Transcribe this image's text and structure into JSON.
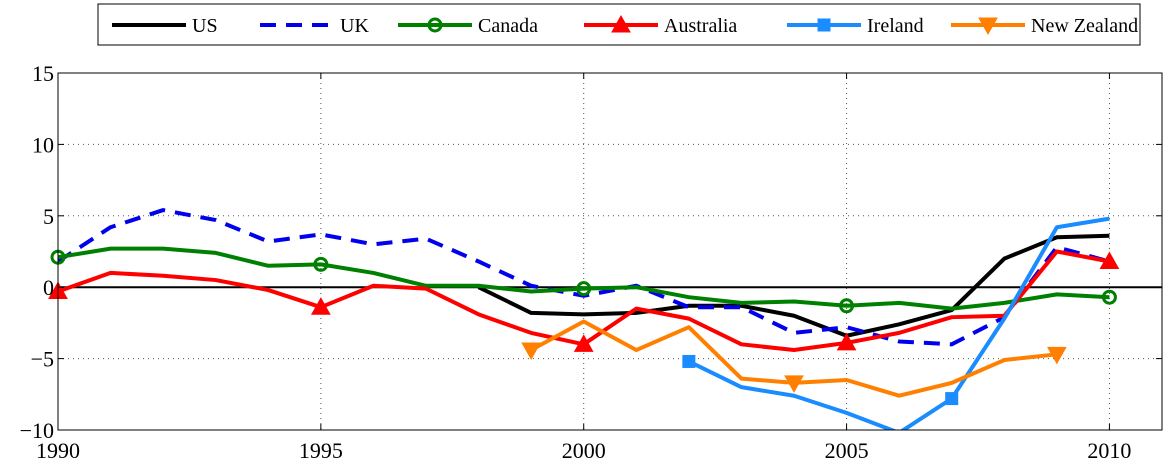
{
  "chart_data": {
    "type": "line",
    "xlim": [
      1990,
      2011
    ],
    "ylim": [
      -10,
      15
    ],
    "xticks": [
      1990,
      1995,
      2000,
      2005,
      2010
    ],
    "yticks": [
      -10,
      -5,
      0,
      5,
      10,
      15
    ],
    "xtick_labels": [
      "1990",
      "1995",
      "2000",
      "2005",
      "2010"
    ],
    "ytick_labels": [
      "−10",
      "−5",
      "0",
      "5",
      "10",
      "15"
    ],
    "grid": true,
    "zero_line": true,
    "legend_position": "top",
    "series": [
      {
        "name": "US",
        "color": "#000000",
        "dash": "solid",
        "marker": "none",
        "marker_x": [],
        "x": [
          1998,
          1999,
          2000,
          2001,
          2002,
          2003,
          2004,
          2005,
          2006,
          2007,
          2008,
          2009,
          2010
        ],
        "y": [
          0.0,
          -1.8,
          -1.9,
          -1.8,
          -1.3,
          -1.3,
          -2.0,
          -3.4,
          -2.6,
          -1.6,
          2.0,
          3.5,
          3.6
        ]
      },
      {
        "name": "UK",
        "color": "#0000ee",
        "dash": "dashed",
        "marker": "none",
        "marker_x": [],
        "x": [
          1990,
          1991,
          1992,
          1993,
          1994,
          1995,
          1996,
          1997,
          1998,
          1999,
          2000,
          2001,
          2002,
          2003,
          2004,
          2005,
          2006,
          2007,
          2008,
          2009,
          2010
        ],
        "y": [
          1.8,
          4.2,
          5.4,
          4.7,
          3.2,
          3.7,
          3.0,
          3.4,
          1.8,
          0.1,
          -0.6,
          0.1,
          -1.4,
          -1.4,
          -3.2,
          -2.8,
          -3.8,
          -4.0,
          -2.1,
          2.8,
          1.8
        ]
      },
      {
        "name": "Canada",
        "color": "#008000",
        "dash": "solid",
        "marker": "circle",
        "marker_x": [
          1990,
          1995,
          2000,
          2005,
          2010
        ],
        "x": [
          1990,
          1991,
          1992,
          1993,
          1994,
          1995,
          1996,
          1997,
          1998,
          1999,
          2000,
          2001,
          2002,
          2003,
          2004,
          2005,
          2006,
          2007,
          2008,
          2009,
          2010
        ],
        "y": [
          2.1,
          2.7,
          2.7,
          2.4,
          1.5,
          1.6,
          1.0,
          0.1,
          0.1,
          -0.3,
          -0.1,
          0.0,
          -0.7,
          -1.1,
          -1.0,
          -1.3,
          -1.1,
          -1.5,
          -1.1,
          -0.5,
          -0.7
        ]
      },
      {
        "name": "Australia",
        "color": "#ff0000",
        "dash": "solid",
        "marker": "triangle-up",
        "marker_x": [
          1990,
          1995,
          2000,
          2005,
          2010
        ],
        "x": [
          1990,
          1991,
          1992,
          1993,
          1994,
          1995,
          1996,
          1997,
          1998,
          1999,
          2000,
          2001,
          2002,
          2003,
          2004,
          2005,
          2006,
          2007,
          2008,
          2009,
          2010
        ],
        "y": [
          -0.3,
          1.0,
          0.8,
          0.5,
          -0.2,
          -1.4,
          0.1,
          -0.1,
          -1.9,
          -3.2,
          -4.0,
          -1.5,
          -2.2,
          -4.0,
          -4.4,
          -3.9,
          -3.2,
          -2.1,
          -2.0,
          2.5,
          1.8
        ]
      },
      {
        "name": "Ireland",
        "color": "#1a8cff",
        "dash": "solid",
        "marker": "square",
        "marker_x": [
          2002,
          2007
        ],
        "x": [
          2002,
          2003,
          2004,
          2005,
          2006,
          2007,
          2008,
          2009,
          2010
        ],
        "y": [
          -5.2,
          -7.0,
          -7.6,
          -8.8,
          -10.2,
          -7.8,
          -2.2,
          4.2,
          4.8
        ]
      },
      {
        "name": "New Zealand",
        "color": "#ff8000",
        "dash": "solid",
        "marker": "triangle-down",
        "marker_x": [
          1999,
          2004,
          2009
        ],
        "x": [
          1999,
          2000,
          2001,
          2002,
          2003,
          2004,
          2005,
          2006,
          2007,
          2008,
          2009
        ],
        "y": [
          -4.4,
          -2.4,
          -4.4,
          -2.8,
          -6.4,
          -6.7,
          -6.5,
          -7.6,
          -6.7,
          -5.1,
          -4.7
        ]
      }
    ]
  }
}
